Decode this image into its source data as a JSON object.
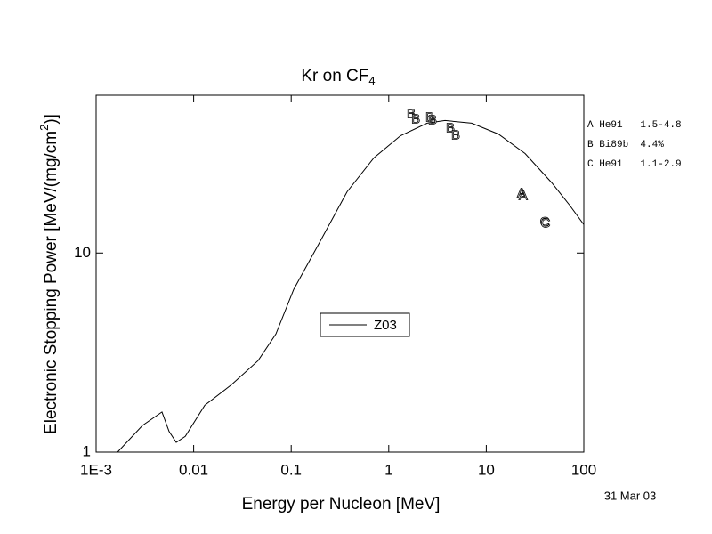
{
  "chart_data": {
    "type": "line",
    "title": "Kr on CF",
    "title_subscript": "4",
    "ylabel": [
      "Electronic Stopping Power [MeV/(mg/cm",
      "2",
      ")]"
    ],
    "xlabel": "Energy per Nucleon [MeV]",
    "date": "31 Mar 03",
    "xscale": "log",
    "yscale": "log",
    "xlim": [
      0.001,
      100
    ],
    "ylim": [
      1,
      62
    ],
    "xticks": [
      {
        "value": 0.001,
        "label": "1E-3"
      },
      0.01,
      0.1,
      1,
      10,
      100
    ],
    "yticks": [
      1,
      10
    ],
    "series": [
      {
        "name": "Z03",
        "color": "#000000",
        "x": [
          0.00166,
          0.00298,
          0.00473,
          0.0056,
          0.00662,
          0.0082,
          0.013,
          0.0244,
          0.0458,
          0.0697,
          0.106,
          0.199,
          0.374,
          0.703,
          1.32,
          2.48,
          3.77,
          7.08,
          13.3,
          25,
          47,
          71.5,
          100
        ],
        "values": [
          1,
          1.36,
          1.59,
          1.27,
          1.12,
          1.2,
          1.72,
          2.18,
          2.88,
          3.92,
          6.56,
          11.5,
          20.3,
          30,
          38.8,
          44.9,
          46.3,
          44.9,
          39.6,
          31.6,
          22.5,
          17.4,
          13.9
        ]
      }
    ],
    "points": [
      {
        "marker": "A",
        "x": [
          23,
          23.9
        ],
        "values": [
          19.9,
          19.3
        ]
      },
      {
        "marker": "B",
        "x": [
          1.7,
          1.89,
          2.64,
          2.81,
          4.28,
          4.85
        ],
        "values": [
          49.7,
          46.7,
          47.7,
          46.3,
          42.2,
          38.8
        ]
      },
      {
        "marker": "C",
        "x": [
          39.7,
          40.5
        ],
        "values": [
          14.2,
          14.0
        ]
      }
    ],
    "legend_notes": [
      "A He91   1.5-4.8",
      "B Bi89b  4.4%",
      "C He91   1.1-2.9"
    ]
  }
}
